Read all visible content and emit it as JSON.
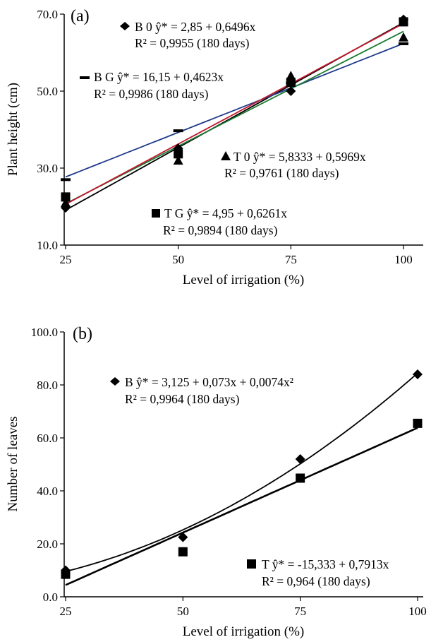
{
  "colors": {
    "B0": "#000000",
    "BG": "#1f3a8a",
    "T0": "#1a7a30",
    "TG": "#c0182e",
    "B": "#000000",
    "T": "#000000"
  },
  "chart_data": [
    {
      "type": "scatter",
      "panel_label": "(a)",
      "xlabel": "Level of irrigation (%)",
      "ylabel": "Plant height (cm)",
      "xlim": [
        25,
        100
      ],
      "ylim": [
        10,
        70
      ],
      "x_ticks": [
        "25",
        "50",
        "75",
        "100"
      ],
      "y_ticks": [
        "10.0",
        "30.0",
        "50.0",
        "70.0"
      ],
      "grid": false,
      "series": [
        {
          "key": "B0",
          "marker": "diamond",
          "x": [
            25,
            50,
            75,
            100
          ],
          "y": [
            19.7,
            35.1,
            50.0,
            68.6
          ],
          "fit": {
            "a": 2.85,
            "b": 0.6496
          },
          "eq": "B 0 ŷ* = 2,85 + 0,6496x",
          "r2": "R² = 0,9955 (180 days)"
        },
        {
          "key": "BG",
          "marker": "dash",
          "x": [
            25,
            50,
            75,
            100
          ],
          "y": [
            27.0,
            39.7,
            52.1,
            62.3
          ],
          "fit": {
            "a": 16.15,
            "b": 0.4623
          },
          "eq": "B G ŷ* = 16,15 + 0,4623x",
          "r2": "R² = 0,9986 (180 days)"
        },
        {
          "key": "T0",
          "marker": "triangle",
          "x": [
            25,
            50,
            75,
            100
          ],
          "y": [
            21.0,
            32.0,
            54.0,
            64.0
          ],
          "fit": {
            "a": 5.8333,
            "b": 0.5969
          },
          "eq": "T 0 ŷ* = 5,8333 + 0,5969x",
          "r2": "R² = 0,9761 (180 days)"
        },
        {
          "key": "TG",
          "marker": "square",
          "x": [
            25,
            50,
            75,
            100
          ],
          "y": [
            22.5,
            33.7,
            52.3,
            68.0
          ],
          "fit": {
            "a": 4.95,
            "b": 0.6261
          },
          "eq": "T G ŷ* = 4,95 + 0,6261x",
          "r2": "R² = 0,9894 (180 days)"
        }
      ]
    },
    {
      "type": "scatter",
      "panel_label": "(b)",
      "xlabel": "Level of irrigation (%)",
      "ylabel": "Number of leaves",
      "xlim": [
        25,
        100
      ],
      "ylim": [
        0,
        100
      ],
      "x_ticks": [
        "25",
        "50",
        "75",
        "100"
      ],
      "y_ticks": [
        "0.0",
        "20.0",
        "40.0",
        "60.0",
        "80.0",
        "100.0"
      ],
      "grid": false,
      "series": [
        {
          "key": "B",
          "marker": "diamond",
          "x": [
            25,
            50,
            75,
            100
          ],
          "y": [
            10.0,
            22.5,
            52.0,
            84.0
          ],
          "fit": {
            "a": 3.125,
            "b": 0.073,
            "c": 0.0074
          },
          "eq": "B ŷ* = 3,125 + 0,073x + 0,0074x²",
          "r2": "R² = 0,9964 (180 days)"
        },
        {
          "key": "T",
          "marker": "square",
          "x": [
            25,
            50,
            75,
            100
          ],
          "y": [
            8.5,
            17.0,
            44.8,
            65.5
          ],
          "fit": {
            "a": -15.333,
            "b": 0.7913
          },
          "eq": "T ŷ* =  -15,333 + 0,7913x",
          "r2": "R² = 0,964 (180 days)"
        }
      ]
    }
  ]
}
